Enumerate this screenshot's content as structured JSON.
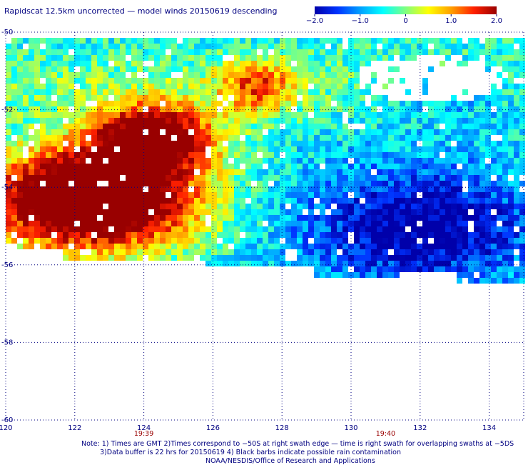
{
  "title": "Rapidscat 12.5km uncorrected — model winds 20150619 descending",
  "colorbar": {
    "labels": [
      "−2.0",
      "−1.0",
      "0",
      "1.0",
      "2.0"
    ],
    "values": [
      -2,
      -1,
      0,
      1,
      2
    ],
    "colors": [
      "#0000aa",
      "#0033ff",
      "#00a0ff",
      "#00ffff",
      "#80ff80",
      "#ffff00",
      "#ffa000",
      "#ff2000",
      "#990000"
    ]
  },
  "notes": {
    "line1": "Note: 1) Times are GMT 2)Times correspond to −50S at right swath edge — time is right swath for overlapping swaths at −5DS",
    "line2": "3)Data buffer is 22 hrs for 20150619 4) Black barbs indicate possible rain contamination",
    "line3": "NOAA/NESDIS/Office of Research and Applications"
  },
  "chart_data": {
    "type": "heatmap",
    "title": "Rapidscat 12.5km uncorrected — model winds 20150619 descending",
    "xlim": [
      120,
      135
    ],
    "ylim": [
      -60,
      -50
    ],
    "x_ticks": [
      120,
      122,
      124,
      126,
      128,
      130,
      132,
      134
    ],
    "x_tick_labels": [
      "120",
      "122",
      "124",
      "126",
      "128",
      "130",
      "132",
      "134"
    ],
    "y_ticks": [
      -50,
      -52,
      -54,
      -56,
      -58,
      -60
    ],
    "y_tick_labels": [
      "-50",
      "-52",
      "-54",
      "-56",
      "-58",
      "-60"
    ],
    "time_labels": [
      {
        "x": 124,
        "label": "19:39"
      },
      {
        "x": 131,
        "label": "19:40"
      }
    ],
    "value_range": [
      -2,
      2
    ],
    "grid": true,
    "swath": {
      "x_range": [
        120,
        135
      ],
      "y_range": [
        -50,
        -56.6
      ]
    },
    "regions": [
      {
        "desc": "dark red, value >= 2.0",
        "x": [
          120.3,
          125.5
        ],
        "y": [
          -53.0,
          -55.6
        ]
      },
      {
        "desc": "red-orange transition",
        "x": [
          121.5,
          126.5
        ],
        "y": [
          -51.5,
          -53.2
        ]
      },
      {
        "desc": "yellow-green band",
        "x": [
          125.5,
          128.5
        ],
        "y": [
          -51.0,
          -54.5
        ]
      },
      {
        "desc": "cyan to light blue",
        "x": [
          126.0,
          135.0
        ],
        "y": [
          -52.0,
          -56.3
        ]
      },
      {
        "desc": "blue to dark blue, about -2.0",
        "x": [
          128.0,
          135.0
        ],
        "y": [
          -53.5,
          -56.5
        ]
      },
      {
        "desc": "no data (white)",
        "x": [
          129.5,
          134.5
        ],
        "y": [
          -50.6,
          -52.0
        ]
      }
    ]
  }
}
